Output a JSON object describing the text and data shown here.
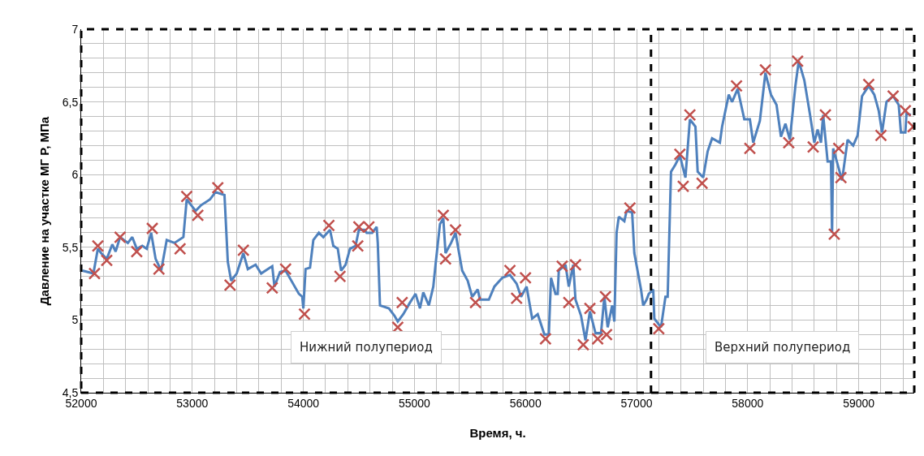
{
  "chart_data": {
    "type": "line",
    "xlabel": "Время, ч.",
    "ylabel": "Давление на участке МГ Р, МПа",
    "xlim": [
      52000,
      59500
    ],
    "ylim": [
      4.5,
      7
    ],
    "grid": true,
    "xticks": [
      52000,
      {
        "value": 52200,
        "label": null
      },
      {
        "value": 52400,
        "label": null
      },
      {
        "value": 52600,
        "label": null
      },
      {
        "value": 52800,
        "label": null
      },
      53000,
      {
        "value": 53200,
        "label": null
      },
      {
        "value": 53400,
        "label": null
      },
      {
        "value": 53600,
        "label": null
      },
      {
        "value": 53800,
        "label": null
      },
      54000,
      {
        "value": 54200,
        "label": null
      },
      {
        "value": 54400,
        "label": null
      },
      {
        "value": 54600,
        "label": null
      },
      {
        "value": 54800,
        "label": null
      },
      55000,
      {
        "value": 55200,
        "label": null
      },
      {
        "value": 55400,
        "label": null
      },
      {
        "value": 55600,
        "label": null
      },
      {
        "value": 55800,
        "label": null
      },
      56000,
      {
        "value": 56200,
        "label": null
      },
      {
        "value": 56400,
        "label": null
      },
      {
        "value": 56600,
        "label": null
      },
      {
        "value": 56800,
        "label": null
      },
      57000,
      {
        "value": 57200,
        "label": null
      },
      {
        "value": 57400,
        "label": null
      },
      {
        "value": 57600,
        "label": null
      },
      {
        "value": 57800,
        "label": null
      },
      58000,
      {
        "value": 58200,
        "label": null
      },
      {
        "value": 58400,
        "label": null
      },
      {
        "value": 58600,
        "label": null
      },
      {
        "value": 58800,
        "label": null
      },
      59000,
      {
        "value": 59200,
        "label": null
      },
      {
        "value": 59400,
        "label": null
      }
    ],
    "yticks": [
      {
        "value": 4.5,
        "label": "4,5"
      },
      {
        "value": 4.6,
        "label": null
      },
      {
        "value": 4.7,
        "label": null
      },
      {
        "value": 4.8,
        "label": null
      },
      {
        "value": 4.9,
        "label": null
      },
      5,
      {
        "value": 5.1,
        "label": null
      },
      {
        "value": 5.2,
        "label": null
      },
      {
        "value": 5.3,
        "label": null
      },
      {
        "value": 5.4,
        "label": null
      },
      {
        "value": 5.5,
        "label": "5,5"
      },
      {
        "value": 5.6,
        "label": null
      },
      {
        "value": 5.7,
        "label": null
      },
      {
        "value": 5.8,
        "label": null
      },
      {
        "value": 5.9,
        "label": null
      },
      6,
      {
        "value": 6.1,
        "label": null
      },
      {
        "value": 6.2,
        "label": null
      },
      {
        "value": 6.3,
        "label": null
      },
      {
        "value": 6.4,
        "label": null
      },
      {
        "value": 6.5,
        "label": "6,5"
      },
      {
        "value": 6.6,
        "label": null
      },
      {
        "value": 6.7,
        "label": null
      },
      {
        "value": 6.8,
        "label": null
      },
      {
        "value": 6.9,
        "label": null
      },
      7
    ],
    "ref_lines": [
      {
        "axis": "x",
        "value": 57130,
        "color": "#000000",
        "line_style": "dashed"
      }
    ],
    "annotations": [
      "Нижний полупериод",
      "Верхний полупериод"
    ],
    "series": [
      {
        "color": "#4f81bd",
        "marker": "none",
        "line_style": "solid",
        "x": [
          52010,
          52110,
          52150,
          52180,
          52230,
          52280,
          52310,
          52350,
          52420,
          52460,
          52500,
          52550,
          52590,
          52630,
          52670,
          52720,
          52770,
          52840,
          52920,
          52950,
          53030,
          53080,
          53160,
          53210,
          53290,
          53320,
          53350,
          53400,
          53460,
          53500,
          53570,
          53620,
          53720,
          53740,
          53790,
          53840,
          53960,
          53990,
          54000,
          54020,
          54060,
          54090,
          54140,
          54180,
          54240,
          54270,
          54310,
          54340,
          54380,
          54420,
          54470,
          54500,
          54550,
          54570,
          54620,
          54660,
          54670,
          54690,
          54770,
          54820,
          54850,
          54900,
          54960,
          55010,
          55050,
          55080,
          55130,
          55170,
          55190,
          55230,
          55260,
          55280,
          55330,
          55370,
          55400,
          55430,
          55480,
          55520,
          55570,
          55590,
          55670,
          55720,
          55790,
          55860,
          55920,
          55960,
          56010,
          56060,
          56110,
          56170,
          56210,
          56230,
          56270,
          56290,
          56300,
          56360,
          56390,
          56430,
          56450,
          56500,
          56540,
          56580,
          56630,
          56680,
          56710,
          56740,
          56780,
          56800,
          56820,
          56840,
          56890,
          56910,
          56960,
          56980,
          57040,
          57060,
          57090,
          57110,
          57150,
          57160,
          57220,
          57260,
          57280,
          57310,
          57350,
          57390,
          57440,
          57480,
          57530,
          57550,
          57600,
          57640,
          57680,
          57750,
          57770,
          57830,
          57860,
          57910,
          57970,
          58020,
          58050,
          58110,
          58160,
          58210,
          58260,
          58300,
          58340,
          58380,
          58430,
          58460,
          58510,
          58560,
          58600,
          58630,
          58660,
          58680,
          58720,
          58750,
          58760,
          58770,
          58850,
          58900,
          58950,
          58990,
          59030,
          59090,
          59140,
          59180,
          59210,
          59250,
          59310,
          59360,
          59380,
          59420,
          59430,
          59470
        ],
        "values": [
          5.34,
          5.32,
          5.49,
          5.46,
          5.42,
          5.52,
          5.47,
          5.57,
          5.53,
          5.57,
          5.49,
          5.51,
          5.49,
          5.6,
          5.42,
          5.34,
          5.55,
          5.53,
          5.57,
          5.83,
          5.75,
          5.79,
          5.83,
          5.88,
          5.86,
          5.4,
          5.27,
          5.32,
          5.46,
          5.35,
          5.38,
          5.32,
          5.37,
          5.23,
          5.33,
          5.34,
          5.18,
          5.16,
          5.08,
          5.35,
          5.36,
          5.55,
          5.6,
          5.57,
          5.62,
          5.51,
          5.49,
          5.34,
          5.38,
          5.49,
          5.51,
          5.62,
          5.62,
          5.6,
          5.6,
          5.64,
          5.53,
          5.1,
          5.08,
          5.03,
          4.99,
          5.04,
          5.12,
          5.18,
          5.08,
          5.19,
          5.1,
          5.23,
          5.38,
          5.66,
          5.7,
          5.46,
          5.53,
          5.6,
          5.47,
          5.34,
          5.27,
          5.16,
          5.21,
          5.14,
          5.14,
          5.23,
          5.29,
          5.31,
          5.25,
          5.16,
          5.23,
          5.01,
          5.04,
          4.9,
          4.9,
          5.29,
          5.18,
          5.18,
          5.34,
          5.38,
          5.23,
          5.38,
          5.14,
          5.03,
          4.86,
          5.06,
          4.91,
          4.91,
          5.16,
          4.95,
          5.1,
          4.99,
          5.6,
          5.71,
          5.68,
          5.75,
          5.74,
          5.46,
          5.21,
          5.1,
          5.14,
          5.18,
          5.21,
          5.01,
          4.95,
          5.16,
          5.16,
          6.02,
          6.07,
          6.13,
          5.98,
          6.38,
          6.33,
          6.02,
          5.98,
          6.16,
          6.25,
          6.22,
          6.33,
          6.55,
          6.5,
          6.59,
          6.38,
          6.38,
          6.22,
          6.37,
          6.7,
          6.55,
          6.48,
          6.26,
          6.35,
          6.24,
          6.61,
          6.78,
          6.65,
          6.42,
          6.22,
          6.31,
          6.22,
          6.41,
          6.09,
          6.09,
          5.6,
          6.18,
          5.96,
          6.24,
          6.2,
          6.27,
          6.54,
          6.61,
          6.55,
          6.44,
          6.29,
          6.5,
          6.54,
          6.48,
          6.29,
          6.29,
          6.42,
          6.41
        ]
      },
      {
        "type": "scatter",
        "color": "#c0504d",
        "marker": "cross",
        "x": [
          52120,
          52150,
          52230,
          52350,
          52500,
          52640,
          52700,
          52890,
          52950,
          53050,
          53230,
          53340,
          53460,
          53720,
          53840,
          54010,
          54230,
          54330,
          54490,
          54500,
          54590,
          54850,
          54890,
          55260,
          55280,
          55370,
          55550,
          55860,
          55920,
          56000,
          56180,
          56330,
          56390,
          56450,
          56520,
          56580,
          56650,
          56720,
          56730,
          56940,
          57200,
          57390,
          57420,
          57480,
          57590,
          57900,
          58020,
          58160,
          58370,
          58450,
          58590,
          58700,
          58780,
          58820,
          58840,
          59090,
          59200,
          59310,
          59420,
          59490
        ],
        "values": [
          5.32,
          5.51,
          5.41,
          5.57,
          5.47,
          5.63,
          5.35,
          5.49,
          5.85,
          5.72,
          5.91,
          5.24,
          5.48,
          5.22,
          5.35,
          5.04,
          5.65,
          5.3,
          5.51,
          5.64,
          5.64,
          4.95,
          5.12,
          5.72,
          5.42,
          5.62,
          5.12,
          5.34,
          5.15,
          5.29,
          4.87,
          5.37,
          5.12,
          5.38,
          4.83,
          5.08,
          4.87,
          5.16,
          4.9,
          5.77,
          4.94,
          6.14,
          5.92,
          6.41,
          5.94,
          6.61,
          6.18,
          6.72,
          6.22,
          6.78,
          6.19,
          6.41,
          5.59,
          6.18,
          5.98,
          6.62,
          6.27,
          6.54,
          6.44,
          6.33
        ]
      }
    ]
  }
}
